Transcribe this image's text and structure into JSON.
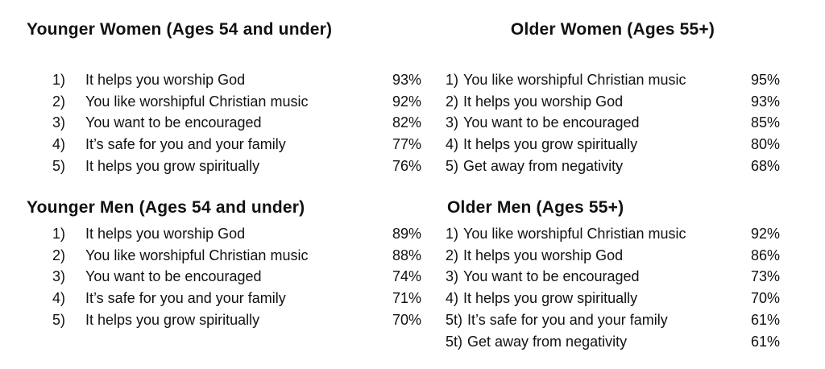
{
  "page": {
    "background": "#ffffff",
    "text_color": "#111111"
  },
  "groups": [
    {
      "id": "younger-women",
      "title": "Younger Women (Ages 54 and under)",
      "items": [
        {
          "num": "1)",
          "label": "It helps you worship God",
          "pct": "93%"
        },
        {
          "num": "2)",
          "label": "You like worshipful Christian music",
          "pct": "92%"
        },
        {
          "num": "3)",
          "label": "You want to be encouraged",
          "pct": "82%"
        },
        {
          "num": "4)",
          "label": "It’s safe for you and your family",
          "pct": "77%"
        },
        {
          "num": "5)",
          "label": "It helps you grow spiritually",
          "pct": "76%"
        }
      ]
    },
    {
      "id": "older-women",
      "title": "Older Women (Ages 55+)",
      "items": [
        {
          "num": "1)",
          "label": "You like worshipful Christian music",
          "pct": "95%"
        },
        {
          "num": "2)",
          "label": "It helps you worship God",
          "pct": "93%"
        },
        {
          "num": "3)",
          "label": "You want to be encouraged",
          "pct": "85%"
        },
        {
          "num": "4)",
          "label": "It helps you grow spiritually",
          "pct": "80%"
        },
        {
          "num": "5)",
          "label": "Get away from negativity",
          "pct": "68%"
        }
      ]
    },
    {
      "id": "younger-men",
      "title": "Younger Men (Ages 54 and under)",
      "items": [
        {
          "num": "1)",
          "label": "It helps you worship God",
          "pct": "89%"
        },
        {
          "num": "2)",
          "label": "You like worshipful Christian music",
          "pct": "88%"
        },
        {
          "num": "3)",
          "label": "You want to be encouraged",
          "pct": "74%"
        },
        {
          "num": "4)",
          "label": "It’s safe for you and your family",
          "pct": "71%"
        },
        {
          "num": "5)",
          "label": "It helps you grow spiritually",
          "pct": "70%"
        }
      ]
    },
    {
      "id": "older-men",
      "title": "Older Men (Ages 55+)",
      "items": [
        {
          "num": "1)",
          "label": "You like worshipful Christian music",
          "pct": "92%"
        },
        {
          "num": "2)",
          "label": "It helps you worship God",
          "pct": "86%"
        },
        {
          "num": "3)",
          "label": "You want to be encouraged",
          "pct": "73%"
        },
        {
          "num": "4)",
          "label": "It helps you grow spiritually",
          "pct": "70%"
        },
        {
          "num": "5t)",
          "label": "It’s safe for you and your family",
          "pct": "61%"
        },
        {
          "num": "5t)",
          "label": "Get away from negativity",
          "pct": "61%"
        }
      ]
    }
  ]
}
